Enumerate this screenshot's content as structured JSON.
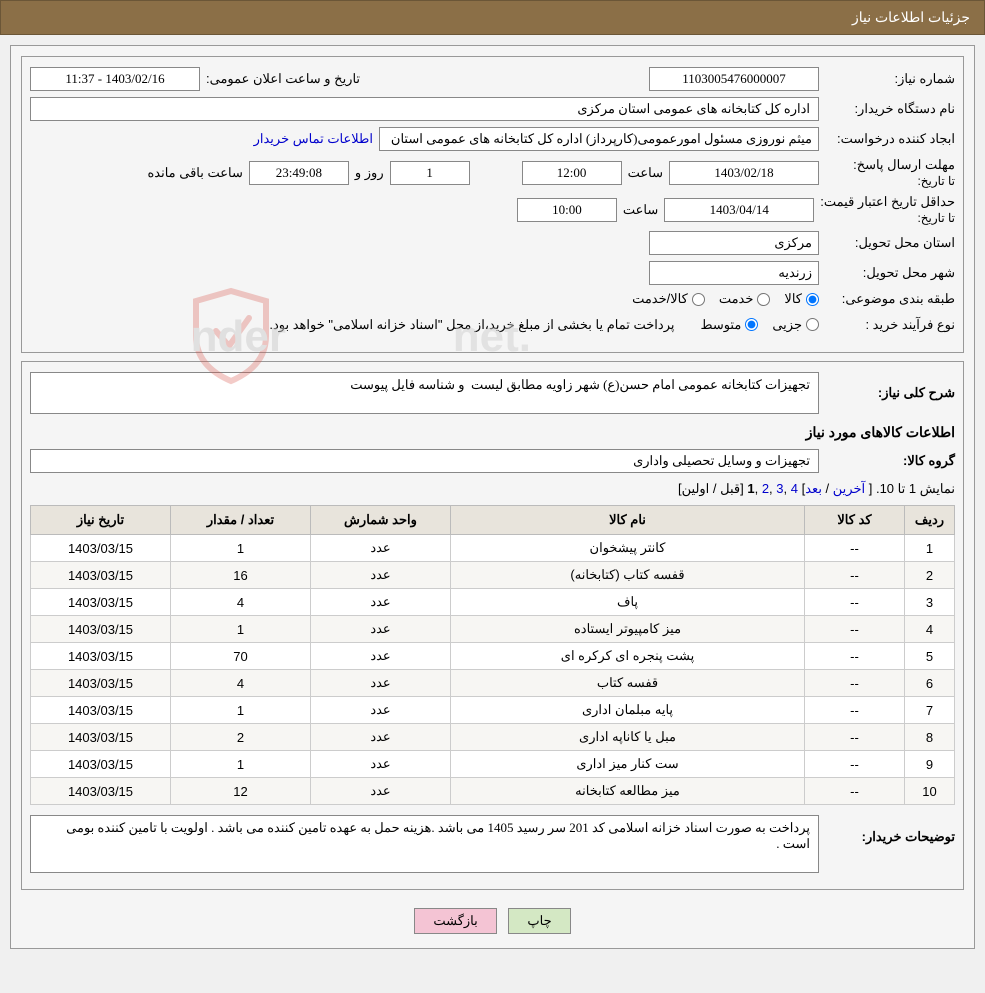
{
  "header": {
    "title": "جزئیات اطلاعات نیاز"
  },
  "fields": {
    "need_number_label": "شماره نیاز:",
    "need_number": "1103005476000007",
    "announce_datetime_label": "تاریخ و ساعت اعلان عمومی:",
    "announce_datetime": "1403/02/16 - 11:37",
    "buyer_org_label": "نام دستگاه خریدار:",
    "buyer_org": "اداره کل کتابخانه های عمومی استان مرکزی",
    "requester_label": "ابجاد کننده درخواست:",
    "requester": "میثم نوروزی مسئول امورعمومی(کارپرداز) اداره کل کتابخانه های عمومی استان",
    "buyer_contact_link": "اطلاعات تماس خریدار",
    "deadline_label": "مهلت ارسال پاسخ:",
    "to_date_label": "تا تاریخ:",
    "deadline_date": "1403/02/18",
    "time_label": "ساعت",
    "deadline_time": "12:00",
    "days_remaining": "1",
    "days_and_label": "روز و",
    "hours_remaining": "23:49:08",
    "hours_remaining_label": "ساعت باقی مانده",
    "price_validity_label": "حداقل تاریخ اعتبار قیمت:",
    "to_date_label2": "تا تاریخ:",
    "price_validity_date": "1403/04/14",
    "price_validity_time": "10:00",
    "delivery_province_label": "استان محل تحویل:",
    "delivery_province": "مرکزی",
    "delivery_city_label": "شهر محل تحویل:",
    "delivery_city": "زرندیه",
    "category_label": "طبقه بندی موضوعی:",
    "cat_goods": "کالا",
    "cat_service": "خدمت",
    "cat_goods_service": "کالا/خدمت",
    "process_type_label": "نوع فرآیند خرید :",
    "proc_partial": "جزیی",
    "proc_medium": "متوسط",
    "process_note": "پرداخت تمام یا بخشی از مبلغ خرید،از محل \"اسناد خزانه اسلامی\" خواهد بود."
  },
  "need_desc": {
    "label": "شرح کلی نیاز:",
    "value": "تجهیزات کتابخانه عمومی امام حسن(ع) شهر زاویه مطابق لیست  و شناسه فایل پیوست"
  },
  "goods_info_title": "اطلاعات کالاهای مورد نیاز",
  "goods_group": {
    "label": "گروه کالا:",
    "value": "تجهیزات و وسایل تحصیلی واداری"
  },
  "pagination": {
    "text_prefix": "نمایش 1 تا 10. [ ",
    "last": "آخرین",
    "sep1": " / ",
    "next": "بعد",
    "sep2": "] ",
    "p4": "4",
    "p3": "3",
    "p2": "2",
    "p1": "1",
    "text_suffix": " [قبل / اولین]",
    "comma": " ,"
  },
  "table": {
    "headers": {
      "idx": "ردیف",
      "code": "کد کالا",
      "name": "نام کالا",
      "unit": "واحد شمارش",
      "qty": "تعداد / مقدار",
      "date": "تاریخ نیاز"
    },
    "rows": [
      {
        "idx": "1",
        "code": "--",
        "name": "کانتر پیشخوان",
        "unit": "عدد",
        "qty": "1",
        "date": "1403/03/15"
      },
      {
        "idx": "2",
        "code": "--",
        "name": "قفسه کتاب (کتابخانه)",
        "unit": "عدد",
        "qty": "16",
        "date": "1403/03/15"
      },
      {
        "idx": "3",
        "code": "--",
        "name": "پاف",
        "unit": "عدد",
        "qty": "4",
        "date": "1403/03/15"
      },
      {
        "idx": "4",
        "code": "--",
        "name": "میز کامپیوتر ایستاده",
        "unit": "عدد",
        "qty": "1",
        "date": "1403/03/15"
      },
      {
        "idx": "5",
        "code": "--",
        "name": "پشت پنجره ای کرکره ای",
        "unit": "عدد",
        "qty": "70",
        "date": "1403/03/15"
      },
      {
        "idx": "6",
        "code": "--",
        "name": "قفسه کتاب",
        "unit": "عدد",
        "qty": "4",
        "date": "1403/03/15"
      },
      {
        "idx": "7",
        "code": "--",
        "name": "پایه مبلمان اداری",
        "unit": "عدد",
        "qty": "1",
        "date": "1403/03/15"
      },
      {
        "idx": "8",
        "code": "--",
        "name": "مبل یا کاناپه اداری",
        "unit": "عدد",
        "qty": "2",
        "date": "1403/03/15"
      },
      {
        "idx": "9",
        "code": "--",
        "name": "ست کنار میز اداری",
        "unit": "عدد",
        "qty": "1",
        "date": "1403/03/15"
      },
      {
        "idx": "10",
        "code": "--",
        "name": "میز مطالعه کتابخانه",
        "unit": "عدد",
        "qty": "12",
        "date": "1403/03/15"
      }
    ]
  },
  "buyer_notes": {
    "label": "توضیحات خریدار:",
    "value": "پرداخت به صورت اسناد خزانه اسلامی کد 201 سر رسید 1405 می باشد .هزینه حمل به عهده تامین کننده می باشد . اولویت با تامین کننده بومی است ."
  },
  "buttons": {
    "print": "چاپ",
    "back": "بازگشت"
  },
  "watermark": {
    "text": "AriaTender.net",
    "text_color": "#cccccc",
    "shield_color": "#d9534a"
  },
  "style": {
    "header_bg": "#8b6f47",
    "border_color": "#999999",
    "th_bg": "#e8e4dc",
    "link_color": "#0000cc",
    "btn_print_bg": "#d4e8c4",
    "btn_back_bg": "#f4c4d4"
  }
}
